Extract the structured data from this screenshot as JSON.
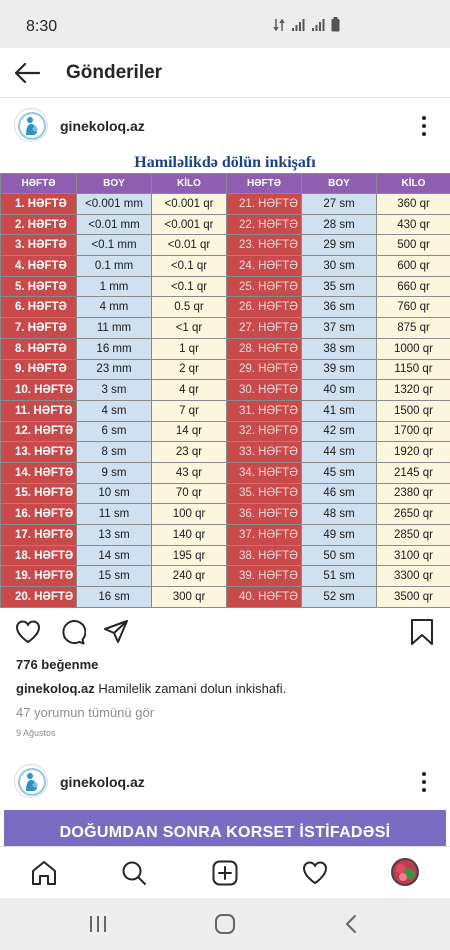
{
  "status_bar": {
    "time": "8:30"
  },
  "header": {
    "title": "Gönderiler"
  },
  "post": {
    "username": "ginekoloq.az",
    "chart_title": "Hamiləlikdə dölün inkişafı",
    "columns": [
      "HƏFTƏ",
      "BOY",
      "KİLO",
      "HƏFTƏ",
      "BOY",
      "KİLO"
    ],
    "rows": [
      [
        "1. HƏFTƏ",
        "<0.001 mm",
        "<0.001 qr",
        "21. HƏFTƏ",
        "27 sm",
        "360 qr"
      ],
      [
        "2. HƏFTƏ",
        "<0.01 mm",
        "<0.001 qr",
        "22. HƏFTƏ",
        "28 sm",
        "430 qr"
      ],
      [
        "3. HƏFTƏ",
        "<0.1 mm",
        "<0.01 qr",
        "23. HƏFTƏ",
        "29 sm",
        "500 qr"
      ],
      [
        "4. HƏFTƏ",
        "0.1 mm",
        "<0.1 qr",
        "24. HƏFTƏ",
        "30 sm",
        "600 qr"
      ],
      [
        "5. HƏFTƏ",
        "1 mm",
        "<0.1 qr",
        "25. HƏFTƏ",
        "35 sm",
        "660 qr"
      ],
      [
        "6. HƏFTƏ",
        "4 mm",
        "0.5 qr",
        "26. HƏFTƏ",
        "36 sm",
        "760 qr"
      ],
      [
        "7. HƏFTƏ",
        "11 mm",
        "<1 qr",
        "27. HƏFTƏ",
        "37 sm",
        "875 qr"
      ],
      [
        "8. HƏFTƏ",
        "16 mm",
        "1 qr",
        "28. HƏFTƏ",
        "38 sm",
        "1000 qr"
      ],
      [
        "9. HƏFTƏ",
        "23 mm",
        "2 qr",
        "29. HƏFTƏ",
        "39 sm",
        "1150 qr"
      ],
      [
        "10. HƏFTƏ",
        "3 sm",
        "4 qr",
        "30. HƏFTƏ",
        "40 sm",
        "1320 qr"
      ],
      [
        "11. HƏFTƏ",
        "4 sm",
        "7 qr",
        "31. HƏFTƏ",
        "41 sm",
        "1500 qr"
      ],
      [
        "12. HƏFTƏ",
        "6 sm",
        "14 qr",
        "32. HƏFTƏ",
        "42 sm",
        "1700 qr"
      ],
      [
        "13. HƏFTƏ",
        "8 sm",
        "23 qr",
        "33. HƏFTƏ",
        "44 sm",
        "1920 qr"
      ],
      [
        "14. HƏFTƏ",
        "9 sm",
        "43 qr",
        "34. HƏFTƏ",
        "45 sm",
        "2145 qr"
      ],
      [
        "15. HƏFTƏ",
        "10 sm",
        "70 qr",
        "35. HƏFTƏ",
        "46 sm",
        "2380 qr"
      ],
      [
        "16. HƏFTƏ",
        "11 sm",
        "100 qr",
        "36. HƏFTƏ",
        "48 sm",
        "2650 qr"
      ],
      [
        "17. HƏFTƏ",
        "13 sm",
        "140 qr",
        "37. HƏFTƏ",
        "49 sm",
        "2850 qr"
      ],
      [
        "18. HƏFTƏ",
        "14 sm",
        "195 qr",
        "38. HƏFTƏ",
        "50 sm",
        "3100 qr"
      ],
      [
        "19. HƏFTƏ",
        "15 sm",
        "240 qr",
        "39. HƏFTƏ",
        "51 sm",
        "3300 qr"
      ],
      [
        "20. HƏFTƏ",
        "16 sm",
        "300 qr",
        "40. HƏFTƏ",
        "52 sm",
        "3500 qr"
      ]
    ],
    "likes": "776 beğenme",
    "caption_user": "ginekoloq.az",
    "caption_text": "Hamilelik zamani dolun inkishafi.",
    "comments_link": "47 yorumun tümünü gör",
    "date": "9 Ağustos"
  },
  "next_post": {
    "username": "ginekoloq.az",
    "banner_text": "DOĞUMDAN SONRA KORSET İSTİFADƏSİ"
  },
  "colors": {
    "header_purple": "#8e5fb0",
    "week_red": "#c94a4a",
    "boy_blue": "#cfe0f1",
    "kilo_cream": "#fdf6de",
    "title_blue": "#1f3f88",
    "banner_purple": "#7a6cc2"
  },
  "icons": {
    "status": [
      "data-transfer-icon",
      "signal-icon",
      "signal-icon",
      "battery-icon"
    ],
    "actions": [
      "heart-icon",
      "comment-icon",
      "share-icon",
      "bookmark-icon"
    ],
    "bottom_nav": [
      "home-icon",
      "search-icon",
      "add-post-icon",
      "activity-heart-icon",
      "profile-avatar"
    ],
    "android_nav": [
      "recent-apps-icon",
      "home-button-icon",
      "back-button-icon"
    ]
  }
}
